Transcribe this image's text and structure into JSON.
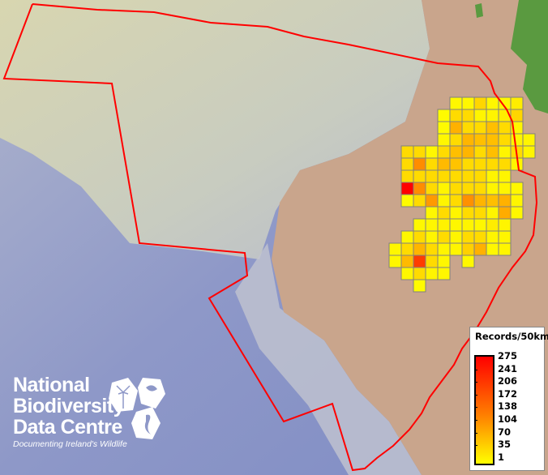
{
  "legend": {
    "title": "Records/50km",
    "ticks": [
      "275",
      "241",
      "206",
      "172",
      "138",
      "104",
      "70",
      "35",
      "1"
    ],
    "color_low": "#ffff00",
    "color_high": "#ff0000",
    "min": 1,
    "max": 275
  },
  "logo": {
    "line1": "National",
    "line2": "Biodiversity",
    "line3": "Data Centre",
    "tagline": "Documenting Ireland's Wildlife"
  },
  "colors": {
    "boundary": "#ff0000",
    "grid_border": "#808080",
    "land": "#c9a58c",
    "shelf": "#d6d2ac",
    "ocean": "#8f99c9",
    "vegetation": "#5a9a40"
  },
  "record_grid": {
    "description_units": "records per 50km square",
    "rows": [
      {
        "row": 0,
        "start_col": 5,
        "values": [
          10,
          10,
          45,
          10,
          10,
          20
        ]
      },
      {
        "row": 1,
        "start_col": 4,
        "values": [
          5,
          40,
          40,
          12,
          12,
          20,
          45
        ]
      },
      {
        "row": 2,
        "start_col": 4,
        "values": [
          5,
          85,
          40,
          40,
          70,
          40,
          12
        ]
      },
      {
        "row": 3,
        "start_col": 4,
        "values": [
          10,
          40,
          80,
          70,
          70,
          40,
          12,
          12
        ]
      },
      {
        "row": 4,
        "start_col": 1,
        "values": [
          40,
          40,
          10,
          40,
          70,
          80,
          40,
          70,
          12,
          40,
          12
        ]
      },
      {
        "row": 5,
        "start_col": 1,
        "values": [
          40,
          125,
          40,
          75,
          65,
          40,
          40,
          40,
          40,
          12
        ]
      },
      {
        "row": 6,
        "start_col": 1,
        "values": [
          40,
          40,
          40,
          40,
          40,
          40,
          40,
          12,
          12
        ]
      },
      {
        "row": 7,
        "start_col": 1,
        "values": [
          275,
          125,
          40,
          12,
          40,
          40,
          40,
          12,
          12,
          10
        ]
      },
      {
        "row": 8,
        "start_col": 1,
        "values": [
          5,
          40,
          110,
          12,
          40,
          120,
          80,
          70,
          85,
          12
        ]
      },
      {
        "row": 9,
        "start_col": 3,
        "values": [
          10,
          40,
          12,
          40,
          40,
          12,
          90,
          10
        ]
      },
      {
        "row": 10,
        "start_col": 2,
        "values": [
          8,
          10,
          15,
          10,
          12,
          10,
          20,
          12
        ]
      },
      {
        "row": 11,
        "start_col": 1,
        "values": [
          10,
          40,
          12,
          40,
          12,
          40,
          40,
          12,
          12
        ]
      },
      {
        "row": 12,
        "start_col": 0,
        "values": [
          10,
          40,
          80,
          40,
          12,
          12,
          50,
          85,
          10,
          12
        ]
      },
      {
        "row": 13,
        "start_col": 0,
        "values": [
          10,
          75,
          210,
          40,
          10
        ]
      },
      {
        "row": 13,
        "start_col": 6,
        "values": [
          8
        ]
      },
      {
        "row": 14,
        "start_col": 1,
        "values": [
          10,
          40,
          12,
          10
        ]
      },
      {
        "row": 15,
        "start_col": 2,
        "values": [
          5
        ]
      }
    ]
  }
}
